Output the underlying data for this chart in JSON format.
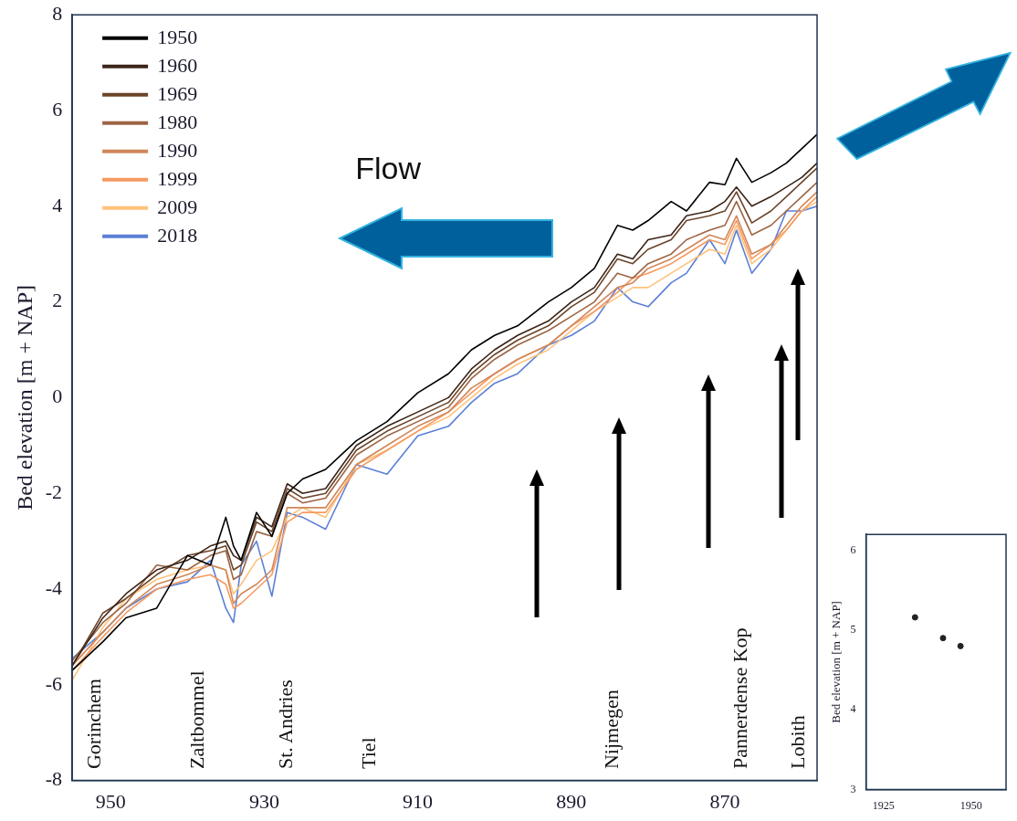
{
  "chart_data": [
    {
      "type": "line",
      "ylabel": "Bed elevation [m + NAP]",
      "xlim": [
        955,
        858
      ],
      "xticks": [
        950,
        930,
        910,
        890,
        870
      ],
      "ylim": [
        -8,
        8
      ],
      "yticks": [
        -8,
        -6,
        -4,
        -2,
        0,
        2,
        4,
        6,
        8
      ],
      "grid": false,
      "legend": "top left",
      "marker": "none",
      "line_style": "solid",
      "x": [
        955,
        951,
        948,
        944,
        940,
        937,
        935,
        934,
        933,
        931,
        929,
        927,
        925,
        922,
        918,
        914,
        910,
        906,
        903,
        900,
        897,
        893,
        890,
        887,
        884,
        882,
        880,
        877,
        875,
        872,
        870,
        868.5,
        866.5,
        864,
        862,
        860,
        858
      ],
      "series": [
        {
          "name": "1950",
          "color": "#000000",
          "values": [
            -5.7,
            -5.1,
            -4.6,
            -4.4,
            -3.3,
            -3.5,
            -2.5,
            -3.1,
            -3.4,
            -2.4,
            -2.9,
            -2.0,
            -1.7,
            -1.5,
            -0.9,
            -0.5,
            0.1,
            0.5,
            1.0,
            1.3,
            1.5,
            2.0,
            2.3,
            2.7,
            3.6,
            3.5,
            3.7,
            4.1,
            3.9,
            4.5,
            4.45,
            5.0,
            4.5,
            4.7,
            4.9,
            5.2,
            5.5
          ]
        },
        {
          "name": "1960",
          "color": "#3b2418",
          "values": [
            -5.6,
            -4.6,
            -4.1,
            -3.6,
            -3.4,
            -3.1,
            -3.0,
            -3.3,
            -3.4,
            -2.5,
            -2.7,
            -1.8,
            -2.0,
            -1.9,
            -1.0,
            -0.6,
            -0.3,
            0.0,
            0.6,
            1.0,
            1.3,
            1.6,
            2.0,
            2.3,
            3.0,
            2.9,
            3.3,
            3.4,
            3.8,
            3.9,
            4.1,
            4.4,
            4.0,
            4.2,
            4.4,
            4.6,
            4.9
          ]
        },
        {
          "name": "1969",
          "color": "#6b4429",
          "values": [
            -5.6,
            -4.5,
            -4.2,
            -3.7,
            -3.3,
            -3.2,
            -3.1,
            -3.6,
            -3.5,
            -2.6,
            -2.8,
            -1.9,
            -2.1,
            -2.0,
            -1.1,
            -0.7,
            -0.4,
            -0.1,
            0.5,
            0.9,
            1.2,
            1.5,
            1.9,
            2.2,
            2.9,
            2.8,
            3.1,
            3.3,
            3.7,
            3.8,
            3.9,
            4.3,
            3.65,
            3.9,
            4.2,
            4.5,
            4.8
          ]
        },
        {
          "name": "1980",
          "color": "#9c6443",
          "values": [
            -5.5,
            -4.7,
            -4.3,
            -3.5,
            -3.6,
            -3.3,
            -3.2,
            -3.8,
            -3.7,
            -2.8,
            -2.9,
            -2.0,
            -2.2,
            -2.1,
            -1.2,
            -0.8,
            -0.5,
            -0.2,
            0.4,
            0.8,
            1.1,
            1.4,
            1.7,
            2.0,
            2.6,
            2.5,
            2.8,
            3.0,
            3.3,
            3.5,
            3.6,
            4.1,
            3.4,
            3.6,
            3.9,
            4.2,
            4.5
          ]
        },
        {
          "name": "1990",
          "color": "#d0875a",
          "values": [
            -5.6,
            -4.9,
            -4.4,
            -3.9,
            -3.7,
            -3.5,
            -3.6,
            -4.3,
            -4.1,
            -3.9,
            -3.6,
            -2.3,
            -2.3,
            -2.3,
            -1.4,
            -1.0,
            -0.6,
            -0.3,
            0.2,
            0.5,
            0.8,
            1.1,
            1.5,
            1.9,
            2.3,
            2.4,
            2.7,
            2.9,
            3.1,
            3.4,
            3.3,
            3.8,
            3.0,
            3.2,
            3.6,
            4.0,
            4.3
          ]
        },
        {
          "name": "1999",
          "color": "#f59a62",
          "values": [
            -5.7,
            -5.0,
            -4.5,
            -4.0,
            -3.8,
            -3.7,
            -3.9,
            -4.4,
            -4.3,
            -4.0,
            -3.7,
            -2.6,
            -2.4,
            -2.4,
            -1.5,
            -1.1,
            -0.7,
            -0.3,
            0.1,
            0.5,
            0.8,
            1.1,
            1.5,
            1.8,
            2.2,
            2.5,
            2.6,
            2.8,
            3.0,
            3.3,
            3.2,
            3.7,
            2.9,
            3.2,
            3.5,
            3.9,
            4.2
          ]
        },
        {
          "name": "2009",
          "color": "#ffc27a",
          "values": [
            -5.9,
            -4.8,
            -4.2,
            -3.8,
            -3.6,
            -3.5,
            -3.6,
            -4.1,
            -3.9,
            -3.4,
            -3.2,
            -2.5,
            -2.3,
            -2.5,
            -1.4,
            -1.1,
            -0.7,
            -0.4,
            0.0,
            0.4,
            0.7,
            1.0,
            1.4,
            1.8,
            2.1,
            2.3,
            2.3,
            2.6,
            2.8,
            3.1,
            3.0,
            3.6,
            2.8,
            3.1,
            3.5,
            3.9,
            4.1
          ]
        },
        {
          "name": "2018",
          "color": "#5b7fd6",
          "values": [
            -5.45,
            -4.9,
            -4.4,
            -4.0,
            -3.85,
            -3.4,
            -4.4,
            -4.7,
            -3.5,
            -3.0,
            -4.15,
            -2.4,
            -2.5,
            -2.75,
            -1.4,
            -1.6,
            -0.8,
            -0.6,
            -0.1,
            0.3,
            0.5,
            1.1,
            1.3,
            1.6,
            2.3,
            2.0,
            1.9,
            2.4,
            2.6,
            3.3,
            2.8,
            3.5,
            2.6,
            3.1,
            3.9,
            3.9,
            4.0
          ]
        }
      ],
      "annotations": [
        "Flow",
        "Gorinchem",
        "Zaltbommel",
        "St. Andries",
        "Tiel",
        "Nijmegen",
        "Pannerdense Kop",
        "Lobith"
      ]
    },
    {
      "type": "scatter",
      "ylabel": "Bed elevation [m + NAP]",
      "xlim": [
        1920,
        1960
      ],
      "xticks": [
        1925,
        1950
      ],
      "ylim": [
        3,
        6.2
      ],
      "yticks": [
        3,
        4,
        5,
        6
      ],
      "grid": false,
      "marker": "circle",
      "x": [
        1934,
        1942,
        1947
      ],
      "series": [
        {
          "color": "#222222",
          "values": [
            5.16,
            4.9,
            4.8
          ]
        }
      ]
    }
  ]
}
